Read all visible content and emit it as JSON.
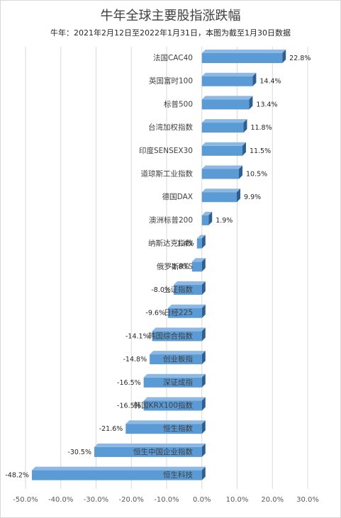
{
  "chart_data": {
    "type": "bar",
    "orientation": "horizontal",
    "title": "牛年全球主要股指涨跌幅",
    "subtitle": "牛年：2021年2月12日至2022年1月31日，本图为截至1月30日数据",
    "categories": [
      "法国CAC40",
      "英国富时100",
      "标普500",
      "台湾加权指数",
      "印度SENSEX30",
      "道琼斯工业指数",
      "德国DAX",
      "澳洲标普200",
      "纳斯达克指数",
      "俄罗斯RTS",
      "上证指数",
      "日经225",
      "韩国综合指数",
      "创业板指",
      "深证成指",
      "韩国KRX100指数",
      "恒生指数",
      "恒生中国企业指数",
      "恒生科技"
    ],
    "values": [
      22.8,
      14.4,
      13.4,
      11.8,
      11.5,
      10.5,
      9.9,
      1.9,
      -1.4,
      -2.8,
      -8.0,
      -9.6,
      -14.1,
      -14.8,
      -16.5,
      -16.5,
      -21.6,
      -30.5,
      -48.2
    ],
    "value_labels": [
      "22.8%",
      "14.4%",
      "13.4%",
      "11.8%",
      "11.5%",
      "10.5%",
      "9.9%",
      "1.9%",
      "-1.4%",
      "-2.8%",
      "-8.0%",
      "-9.6%",
      "-14.1%",
      "-14.8%",
      "-16.5%",
      "-16.5%",
      "-21.6%",
      "-30.5%",
      "-48.2%"
    ],
    "xlim": [
      -50,
      30
    ],
    "xticks": [
      -50,
      -40,
      -30,
      -20,
      -10,
      0,
      10,
      20,
      30
    ],
    "xtick_labels": [
      "-50.0%",
      "-40.0%",
      "-30.0%",
      "-20.0%",
      "-10.0%",
      "0.0%",
      "10.0%",
      "20.0%",
      "30.0%"
    ],
    "grid": "vertical",
    "bar_color": "#5b9bd5",
    "bar_side_color": "#2e5f8e",
    "bar_top_color": "#8db8e3"
  }
}
